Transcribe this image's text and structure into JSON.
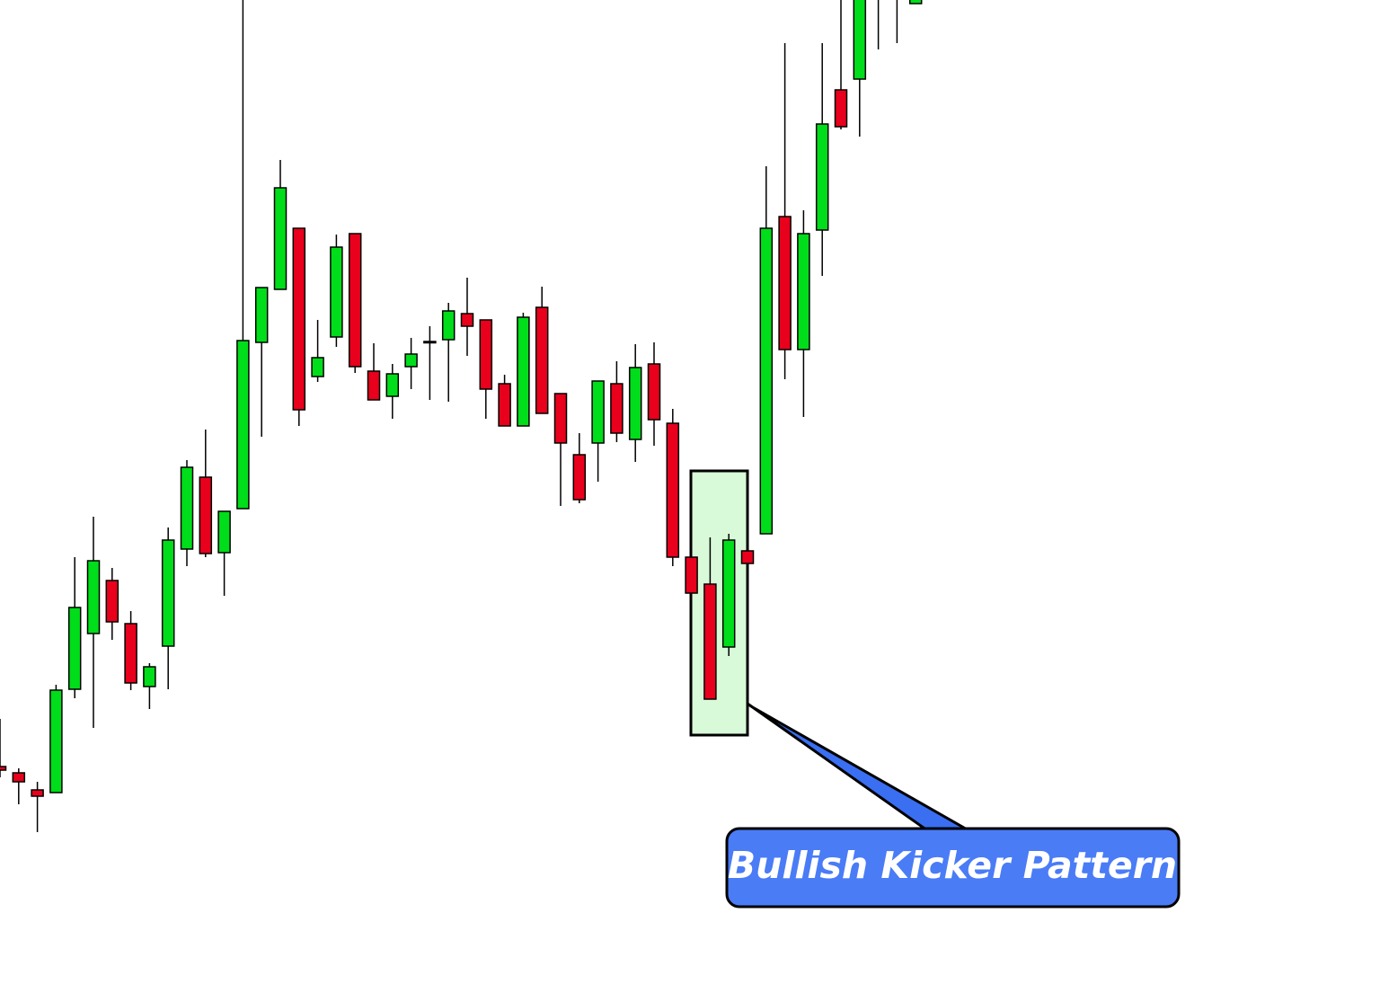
{
  "chart_data": {
    "type": "candlestick",
    "annotation": "Bullish Kicker Pattern",
    "up_color": "#00dd1a",
    "down_color": "#e8001c",
    "ylim": [
      0,
      1095
    ],
    "open": [
      242,
      235,
      216,
      213,
      328,
      390,
      449,
      401,
      331,
      376,
      484,
      564,
      480,
      529,
      714,
      773,
      841,
      676,
      720,
      835,
      682,
      654,
      687,
      714,
      717,
      746,
      739,
      668,
      621,
      753,
      657,
      589,
      602,
      668,
      606,
      690,
      624,
      475,
      445,
      375,
      482,
      501,
      854,
      706,
      839,
      995,
      1007,
      1110,
      1110,
      1091
    ],
    "high": [
      295,
      240,
      225,
      333,
      475,
      520,
      463,
      415,
      357,
      508,
      583,
      617,
      526,
      1100,
      775,
      917,
      841,
      739,
      834,
      835,
      713,
      690,
      719,
      732,
      758,
      786,
      739,
      678,
      747,
      776,
      657,
      613,
      671,
      693,
      712,
      714,
      640,
      475,
      497,
      501,
      482,
      910,
      1047,
      861,
      1047,
      1100,
      1120,
      1130,
      1130,
      1120
    ],
    "low": [
      230,
      200,
      169,
      213,
      318,
      285,
      383,
      327,
      306,
      328,
      465,
      475,
      432,
      529,
      609,
      773,
      621,
      670,
      709,
      680,
      650,
      629,
      662,
      650,
      648,
      699,
      629,
      621,
      621,
      635,
      532,
      535,
      559,
      603,
      581,
      599,
      465,
      433,
      317,
      365,
      468,
      501,
      673,
      631,
      788,
      951,
      943,
      1040,
      1047,
      1091
    ],
    "close": [
      238,
      225,
      209,
      327,
      419,
      471,
      403,
      335,
      353,
      494,
      575,
      479,
      526,
      716,
      775,
      886,
      639,
      697,
      820,
      687,
      650,
      679,
      701,
      715,
      749,
      732,
      662,
      621,
      742,
      635,
      602,
      539,
      671,
      613,
      686,
      628,
      475,
      435,
      317,
      494,
      468,
      841,
      706,
      835,
      957,
      954,
      1100,
      1125,
      1125,
      1110
    ]
  }
}
